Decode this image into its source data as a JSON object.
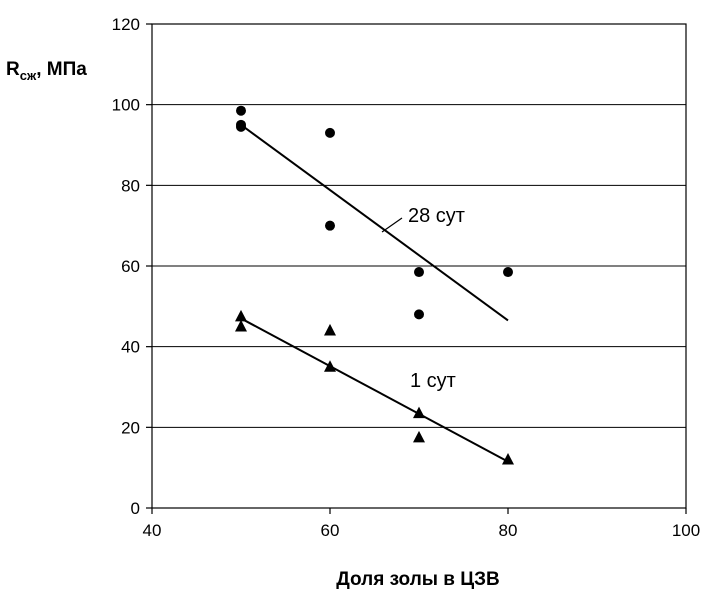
{
  "chart_data": {
    "type": "scatter",
    "title": "",
    "xlabel": "Доля золы в ЦЗВ",
    "ylabel": {
      "main": "R",
      "subscript": "сж",
      "rest": ", МПа"
    },
    "xlim": [
      40,
      100
    ],
    "ylim": [
      0,
      120
    ],
    "x_ticks": [
      "40",
      "60",
      "80",
      "100"
    ],
    "y_ticks": [
      "0",
      "20",
      "40",
      "60",
      "80",
      "100",
      "120"
    ],
    "grid": "horizontal",
    "series": [
      {
        "name": "28 сут",
        "marker": "circle",
        "points": [
          {
            "x": 50,
            "y": 98.5
          },
          {
            "x": 50,
            "y": 95
          },
          {
            "x": 50,
            "y": 94.5
          },
          {
            "x": 60,
            "y": 93
          },
          {
            "x": 60,
            "y": 70
          },
          {
            "x": 70,
            "y": 58.5
          },
          {
            "x": 70,
            "y": 48
          },
          {
            "x": 80,
            "y": 58.5
          }
        ],
        "trend": [
          {
            "x": 50,
            "y": 95
          },
          {
            "x": 80,
            "y": 46.5
          }
        ]
      },
      {
        "name": "1 сут",
        "marker": "triangle",
        "points": [
          {
            "x": 50,
            "y": 47.5
          },
          {
            "x": 50,
            "y": 45
          },
          {
            "x": 60,
            "y": 44
          },
          {
            "x": 60,
            "y": 35
          },
          {
            "x": 70,
            "y": 23.5
          },
          {
            "x": 70,
            "y": 17.5
          },
          {
            "x": 80,
            "y": 12
          }
        ],
        "trend": [
          {
            "x": 50,
            "y": 47
          },
          {
            "x": 80,
            "y": 11.5
          }
        ]
      }
    ],
    "annotations": [
      {
        "text": "28 сут",
        "series": "28 сут"
      },
      {
        "text": "1 сут",
        "series": "1 сут"
      }
    ]
  }
}
